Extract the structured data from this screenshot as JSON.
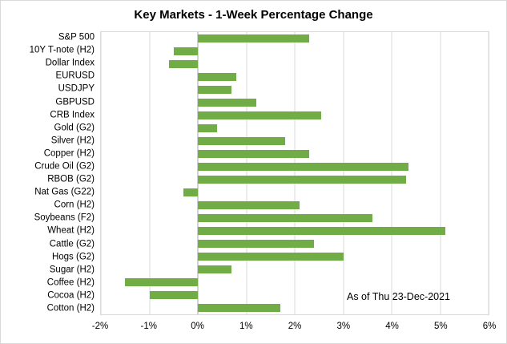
{
  "chart_data": {
    "type": "bar",
    "orientation": "horizontal",
    "title": "Key Markets - 1-Week Percentage Change",
    "annotation": "As of Thu 23-Dec-2021",
    "categories": [
      "S&P 500",
      "10Y T-note (H2)",
      "Dollar Index",
      "EURUSD",
      "USDJPY",
      "GBPUSD",
      "CRB Index",
      "Gold (G2)",
      "Silver (H2)",
      "Copper (H2)",
      "Crude Oil (G2)",
      "RBOB (G2)",
      "Nat Gas (G22)",
      "Corn (H2)",
      "Soybeans (F2)",
      "Wheat (H2)",
      "Cattle (G2)",
      "Hogs (G2)",
      "Sugar (H2)",
      "Coffee (H2)",
      "Cocoa (H2)",
      "Cotton (H2)"
    ],
    "values": [
      2.3,
      -0.5,
      -0.6,
      0.8,
      0.7,
      1.2,
      2.55,
      0.4,
      1.8,
      2.3,
      4.35,
      4.3,
      -0.3,
      2.1,
      3.6,
      5.1,
      2.4,
      3.0,
      0.7,
      -1.5,
      -1.0,
      1.7
    ],
    "value_unit": "%",
    "xlim": [
      -2,
      6
    ],
    "x_ticks": [
      "-2%",
      "-1%",
      "0%",
      "1%",
      "2%",
      "3%",
      "4%",
      "5%",
      "6%"
    ],
    "x_tick_values": [
      -2,
      -1,
      0,
      1,
      2,
      3,
      4,
      5,
      6
    ],
    "bar_color": "#70AD47",
    "grid": true,
    "legend": "none"
  }
}
